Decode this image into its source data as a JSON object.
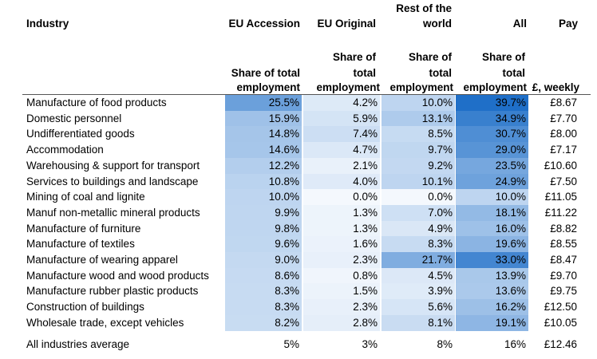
{
  "chart_data": {
    "type": "table",
    "columns": [
      {
        "key": "industry",
        "header": "Industry",
        "subheader": ""
      },
      {
        "key": "eu_accession",
        "header": "EU Accession",
        "subheader": "Share of total employment"
      },
      {
        "key": "eu_original",
        "header": "EU Original",
        "subheader": "Share of total employment"
      },
      {
        "key": "rest_of_world",
        "header": "Rest of the world",
        "subheader": "Share of total employment"
      },
      {
        "key": "all",
        "header": "All",
        "subheader": "Share of total employment"
      },
      {
        "key": "pay",
        "header": "Pay",
        "subheader": "£, weekly"
      }
    ],
    "header_text": {
      "industry": "Industry",
      "eu_accession": "EU Accession",
      "eu_original": "EU Original",
      "rest_line1": "Rest of the",
      "rest_line2": "world",
      "all": "All",
      "pay": "Pay",
      "share_of": "Share of",
      "total": "total",
      "share_of_total": "Share of total",
      "employment": "employment",
      "pay_unit": "£, weekly"
    },
    "rows": [
      {
        "industry": "Manufacture of food products",
        "eu_accession": "25.5%",
        "eu_original": "4.2%",
        "rest_of_world": "10.0%",
        "all": "39.7%",
        "pay": "£8.67"
      },
      {
        "industry": "Domestic personnel",
        "eu_accession": "15.9%",
        "eu_original": "5.9%",
        "rest_of_world": "13.1%",
        "all": "34.9%",
        "pay": "£7.70"
      },
      {
        "industry": "Undifferentiated goods",
        "eu_accession": "14.8%",
        "eu_original": "7.4%",
        "rest_of_world": "8.5%",
        "all": "30.7%",
        "pay": "£8.00"
      },
      {
        "industry": "Accommodation",
        "eu_accession": "14.6%",
        "eu_original": "4.7%",
        "rest_of_world": "9.7%",
        "all": "29.0%",
        "pay": "£7.17"
      },
      {
        "industry": "Warehousing & support for transport",
        "eu_accession": "12.2%",
        "eu_original": "2.1%",
        "rest_of_world": "9.2%",
        "all": "23.5%",
        "pay": "£10.60"
      },
      {
        "industry": "Services to buildings and landscape",
        "eu_accession": "10.8%",
        "eu_original": "4.0%",
        "rest_of_world": "10.1%",
        "all": "24.9%",
        "pay": "£7.50"
      },
      {
        "industry": "Mining of coal and lignite",
        "eu_accession": "10.0%",
        "eu_original": "0.0%",
        "rest_of_world": "0.0%",
        "all": "10.0%",
        "pay": "£11.05"
      },
      {
        "industry": "Manuf non-metallic mineral products",
        "eu_accession": "9.9%",
        "eu_original": "1.3%",
        "rest_of_world": "7.0%",
        "all": "18.1%",
        "pay": "£11.22"
      },
      {
        "industry": "Manufacture of furniture",
        "eu_accession": "9.8%",
        "eu_original": "1.3%",
        "rest_of_world": "4.9%",
        "all": "16.0%",
        "pay": "£8.82"
      },
      {
        "industry": "Manufacture of textiles",
        "eu_accession": "9.6%",
        "eu_original": "1.6%",
        "rest_of_world": "8.3%",
        "all": "19.6%",
        "pay": "£8.55"
      },
      {
        "industry": "Manufacture of wearing apparel",
        "eu_accession": "9.0%",
        "eu_original": "2.3%",
        "rest_of_world": "21.7%",
        "all": "33.0%",
        "pay": "£8.47"
      },
      {
        "industry": "Manufacture wood and wood products",
        "eu_accession": "8.6%",
        "eu_original": "0.8%",
        "rest_of_world": "4.5%",
        "all": "13.9%",
        "pay": "£9.70"
      },
      {
        "industry": "Manufacture rubber plastic products",
        "eu_accession": "8.3%",
        "eu_original": "1.5%",
        "rest_of_world": "3.9%",
        "all": "13.6%",
        "pay": "£9.75"
      },
      {
        "industry": "Construction of buildings",
        "eu_accession": "8.3%",
        "eu_original": "2.3%",
        "rest_of_world": "5.6%",
        "all": "16.2%",
        "pay": "£12.50"
      },
      {
        "industry": "Wholesale trade, except vehicles",
        "eu_accession": "8.2%",
        "eu_original": "2.8%",
        "rest_of_world": "8.1%",
        "all": "19.1%",
        "pay": "£10.05"
      }
    ],
    "average_row": {
      "industry": "All industries average",
      "eu_accession": "5%",
      "eu_original": "3%",
      "rest_of_world": "8%",
      "all": "16%",
      "pay": "£12.46"
    },
    "heatmap": {
      "low_color": "#f4f8fd",
      "high_color": "#1f6fc8",
      "min": 0.0,
      "max": 39.7,
      "applies_to": [
        "eu_accession",
        "eu_original",
        "rest_of_world",
        "all"
      ]
    }
  }
}
